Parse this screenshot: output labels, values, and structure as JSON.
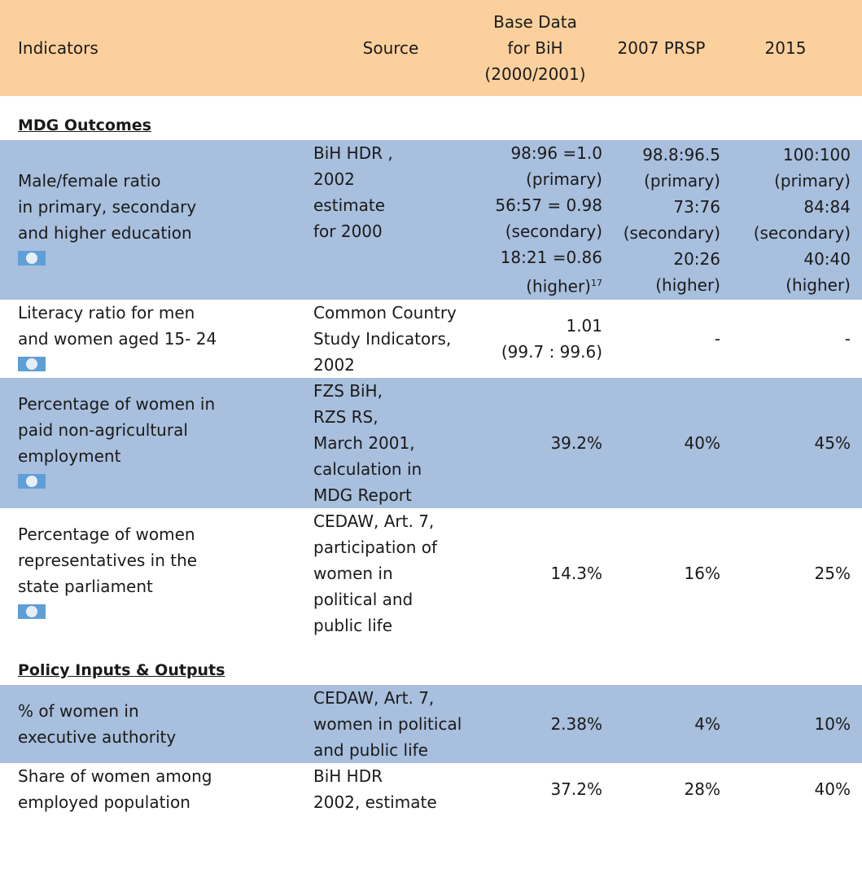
{
  "table": {
    "header": [
      [
        "Indicators"
      ],
      [
        "Source"
      ],
      [
        "Base Data",
        "for BiH",
        "(2000/2001)"
      ],
      [
        "2007 PRSP"
      ],
      [
        "2015"
      ]
    ],
    "rows": [
      {
        "section": "MDG Outcomes"
      },
      {
        "icon": true,
        "footnote": "17",
        "cells": [
          [
            "Male/female ratio",
            "in primary, secondary",
            "and higher education"
          ],
          [
            "BiH HDR ,",
            "2002",
            "estimate",
            "for 2000"
          ],
          [
            "98:96 =1.0",
            "(primary)",
            "56:57 = 0.98",
            "(secondary)",
            "18:21 =0.86",
            "(higher)"
          ],
          [
            "98.8:96.5",
            "(primary)",
            "73:76",
            "(secondary)",
            "20:26",
            "(higher)"
          ],
          [
            "100:100",
            "(primary)",
            "84:84",
            "(secondary)",
            "40:40",
            "(higher)"
          ]
        ]
      },
      {
        "icon": true,
        "cells": [
          [
            "Literacy ratio for men",
            "and women aged 15- 24"
          ],
          [
            "Common Country",
            "Study Indicators,",
            "2002"
          ],
          [
            "1.01",
            "(99.7 : 99.6)"
          ],
          [
            "-"
          ],
          [
            "-"
          ]
        ]
      },
      {
        "icon": true,
        "cells": [
          [
            "Percentage of women in",
            "paid non-agricultural",
            "employment"
          ],
          [
            "FZS BiH,",
            "RZS RS,",
            "March 2001,",
            "calculation in",
            "MDG Report"
          ],
          [
            "39.2%"
          ],
          [
            "40%"
          ],
          [
            "45%"
          ]
        ]
      },
      {
        "icon": true,
        "cells": [
          [
            "Percentage of women",
            "representatives in the",
            "state parliament"
          ],
          [
            "CEDAW, Art. 7,",
            "participation of",
            "women in",
            "political and",
            "public life"
          ],
          [
            "14.3%"
          ],
          [
            "16%"
          ],
          [
            "25%"
          ]
        ]
      },
      {
        "section": "Policy Inputs & Outputs"
      },
      {
        "cells": [
          [
            "% of women in",
            "executive authority"
          ],
          [
            "CEDAW, Art. 7,",
            " women in political",
            "and public life"
          ],
          [
            "2.38%"
          ],
          [
            "4%"
          ],
          [
            "10%"
          ]
        ]
      },
      {
        "cells": [
          [
            "Share of women among",
            "employed population"
          ],
          [
            "BiH HDR",
            "2002, estimate"
          ],
          [
            "37.2%"
          ],
          [
            "28%"
          ],
          [
            "40%"
          ]
        ]
      }
    ]
  }
}
